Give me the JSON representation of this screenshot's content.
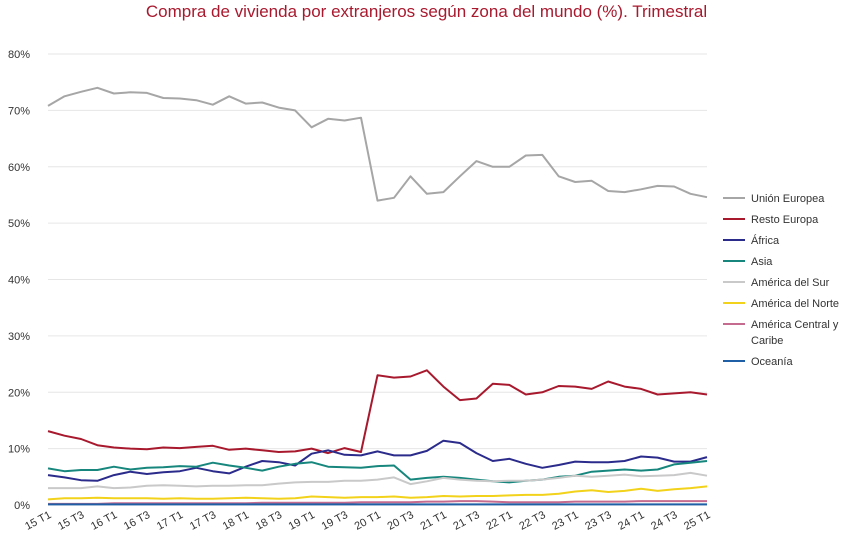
{
  "chart_data": {
    "type": "line",
    "title": "Compra de vivienda por extranjeros según zona del mundo (%). Trimestral",
    "xlabel": "",
    "ylabel": "",
    "ylim": [
      0,
      80
    ],
    "yticks": [
      "0%",
      "10%",
      "20%",
      "30%",
      "40%",
      "50%",
      "60%",
      "70%",
      "80%"
    ],
    "grid": true,
    "legend_position": "right",
    "x_tick_labels": [
      "15 T1",
      "15 T3",
      "16 T1",
      "16 T3",
      "17 T1",
      "17 T3",
      "18 T1",
      "18 T3",
      "19 T1",
      "19 T3",
      "20 T1",
      "20 T3",
      "21 T1",
      "21 T3",
      "22 T1",
      "22 T3",
      "23 T1",
      "23 T3",
      "24 T1",
      "24 T3",
      "25 T1"
    ],
    "x": [
      "15 T1",
      "15 T2",
      "15 T3",
      "15 T4",
      "16 T1",
      "16 T2",
      "16 T3",
      "16 T4",
      "17 T1",
      "17 T2",
      "17 T3",
      "17 T4",
      "18 T1",
      "18 T2",
      "18 T3",
      "18 T4",
      "19 T1",
      "19 T2",
      "19 T3",
      "19 T4",
      "20 T1",
      "20 T2",
      "20 T3",
      "20 T4",
      "21 T1",
      "21 T2",
      "21 T3",
      "21 T4",
      "22 T1",
      "22 T2",
      "22 T3",
      "22 T4",
      "23 T1",
      "23 T2",
      "23 T3",
      "23 T4",
      "24 T1",
      "24 T2",
      "24 T3",
      "24 T4",
      "25 T1"
    ],
    "series": [
      {
        "name": "Unión Europea",
        "color": "#a6a6a6",
        "values": [
          70.8,
          72.5,
          73.3,
          74.0,
          73.0,
          73.2,
          73.1,
          72.2,
          72.1,
          71.8,
          71.0,
          72.5,
          71.2,
          71.4,
          70.5,
          70.0,
          67.0,
          68.5,
          68.2,
          68.7,
          54.0,
          54.5,
          58.3,
          55.2,
          55.5,
          58.3,
          61.0,
          60.0,
          60.0,
          62.0,
          62.1,
          58.3,
          57.3,
          57.5,
          55.7,
          55.5,
          56.0,
          56.6,
          56.5,
          55.2,
          54.6
        ]
      },
      {
        "name": "Resto Europa",
        "color": "#a8192e",
        "values": [
          13.1,
          12.3,
          11.7,
          10.6,
          10.2,
          10.0,
          9.9,
          10.2,
          10.1,
          10.3,
          10.5,
          9.8,
          10.0,
          9.7,
          9.4,
          9.5,
          10.0,
          9.2,
          10.1,
          9.4,
          23.0,
          22.6,
          22.8,
          23.9,
          21.0,
          18.6,
          18.9,
          21.5,
          21.3,
          19.6,
          20.0,
          21.1,
          21.0,
          20.6,
          21.9,
          21.0,
          20.6,
          19.6,
          19.8,
          20.0,
          19.6
        ]
      },
      {
        "name": "África",
        "color": "#2b2b8c",
        "values": [
          5.3,
          4.9,
          4.4,
          4.3,
          5.3,
          5.9,
          5.5,
          5.8,
          6.0,
          6.6,
          6.0,
          5.6,
          6.8,
          7.8,
          7.6,
          7.0,
          9.1,
          9.7,
          8.9,
          8.8,
          9.5,
          8.8,
          8.8,
          9.6,
          11.4,
          11.0,
          9.2,
          7.8,
          8.2,
          7.3,
          6.6,
          7.1,
          7.7,
          7.6,
          7.6,
          7.8,
          8.6,
          8.4,
          7.7,
          7.7,
          8.5
        ]
      },
      {
        "name": "Asia",
        "color": "#17877d",
        "values": [
          6.5,
          6.0,
          6.2,
          6.2,
          6.8,
          6.3,
          6.6,
          6.7,
          6.9,
          6.8,
          7.5,
          7.0,
          6.6,
          6.1,
          6.8,
          7.3,
          7.6,
          6.8,
          6.7,
          6.6,
          6.9,
          7.0,
          4.5,
          4.8,
          5.0,
          4.8,
          4.5,
          4.2,
          4.0,
          4.3,
          4.5,
          5.0,
          5.2,
          5.9,
          6.1,
          6.3,
          6.1,
          6.3,
          7.2,
          7.5,
          7.8
        ]
      },
      {
        "name": "América del Sur",
        "color": "#c9c9c9",
        "values": [
          3.0,
          3.0,
          3.0,
          3.3,
          3.0,
          3.1,
          3.4,
          3.5,
          3.4,
          3.3,
          3.4,
          3.4,
          3.5,
          3.5,
          3.8,
          4.0,
          4.1,
          4.1,
          4.3,
          4.3,
          4.5,
          4.9,
          3.7,
          4.2,
          4.8,
          4.5,
          4.3,
          4.2,
          4.3,
          4.3,
          4.5,
          4.8,
          5.2,
          5.0,
          5.2,
          5.4,
          5.1,
          5.2,
          5.3,
          5.7,
          5.2
        ]
      },
      {
        "name": "América del Norte",
        "color": "#f2d21b",
        "values": [
          1.0,
          1.2,
          1.2,
          1.3,
          1.2,
          1.2,
          1.2,
          1.1,
          1.2,
          1.1,
          1.1,
          1.2,
          1.3,
          1.2,
          1.1,
          1.2,
          1.5,
          1.4,
          1.3,
          1.4,
          1.4,
          1.5,
          1.3,
          1.4,
          1.6,
          1.5,
          1.6,
          1.6,
          1.7,
          1.8,
          1.8,
          2.0,
          2.4,
          2.6,
          2.3,
          2.5,
          2.9,
          2.5,
          2.8,
          3.0,
          3.3
        ]
      },
      {
        "name": "América Central y Caribe",
        "color": "#c56b8f",
        "values": [
          0.2,
          0.2,
          0.2,
          0.2,
          0.3,
          0.3,
          0.3,
          0.3,
          0.3,
          0.3,
          0.3,
          0.3,
          0.3,
          0.4,
          0.4,
          0.4,
          0.4,
          0.4,
          0.4,
          0.5,
          0.5,
          0.5,
          0.5,
          0.6,
          0.6,
          0.7,
          0.7,
          0.6,
          0.5,
          0.5,
          0.5,
          0.5,
          0.6,
          0.6,
          0.6,
          0.6,
          0.7,
          0.7,
          0.7,
          0.7,
          0.7
        ]
      },
      {
        "name": "Oceanía",
        "color": "#1f5fa6",
        "values": [
          0.1,
          0.1,
          0.1,
          0.1,
          0.1,
          0.1,
          0.1,
          0.1,
          0.1,
          0.1,
          0.1,
          0.1,
          0.1,
          0.1,
          0.1,
          0.1,
          0.1,
          0.1,
          0.1,
          0.1,
          0.1,
          0.1,
          0.1,
          0.1,
          0.1,
          0.1,
          0.1,
          0.1,
          0.1,
          0.1,
          0.1,
          0.1,
          0.1,
          0.1,
          0.1,
          0.1,
          0.1,
          0.1,
          0.1,
          0.1,
          0.1
        ]
      }
    ]
  }
}
